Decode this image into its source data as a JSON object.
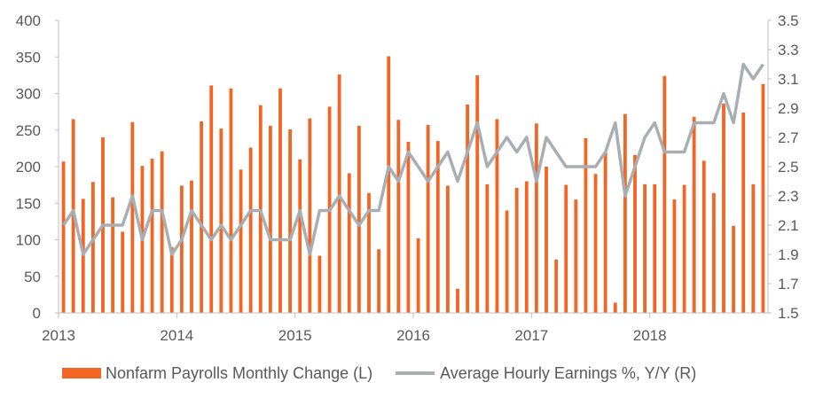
{
  "chart_data": {
    "type": "bar",
    "title": "",
    "x_tick_labels": [
      "2013",
      "2014",
      "2015",
      "2016",
      "2017",
      "2018"
    ],
    "left_axis": {
      "ylim": [
        0,
        400
      ],
      "ticks": [
        "0",
        "50",
        "100",
        "150",
        "200",
        "250",
        "300",
        "350",
        "400"
      ]
    },
    "right_axis": {
      "ylim": [
        1.5,
        3.5
      ],
      "ticks": [
        "1.5",
        "1.7",
        "1.9",
        "2.1",
        "2.3",
        "2.5",
        "2.7",
        "2.9",
        "3.1",
        "3.3",
        "3.5"
      ]
    },
    "grid": false,
    "legend_position": "bottom",
    "months_start": "2013-01",
    "series": [
      {
        "name": "Nonfarm Payrolls Monthly Change (L)",
        "type": "bar",
        "axis": "left",
        "color": "#f26522",
        "values": [
          207,
          265,
          156,
          179,
          240,
          158,
          111,
          261,
          201,
          211,
          221,
          90,
          174,
          181,
          262,
          311,
          252,
          307,
          196,
          226,
          284,
          256,
          307,
          251,
          210,
          266,
          78,
          282,
          326,
          191,
          256,
          164,
          87,
          351,
          264,
          234,
          102,
          257,
          235,
          174,
          33,
          285,
          325,
          176,
          265,
          140,
          171,
          180,
          259,
          200,
          73,
          175,
          155,
          239,
          190,
          220,
          14,
          272,
          216,
          176,
          176,
          324,
          155,
          175,
          268,
          208,
          164,
          286,
          119,
          274,
          176,
          313
        ]
      },
      {
        "name": "Average Hourly Earnings %, Y/Y (R)",
        "type": "line",
        "axis": "right",
        "color": "#a9aeb2",
        "values": [
          2.1,
          2.2,
          1.9,
          2.0,
          2.1,
          2.1,
          2.1,
          2.3,
          2.0,
          2.2,
          2.2,
          1.9,
          2.0,
          2.2,
          2.1,
          2.0,
          2.1,
          2.0,
          2.1,
          2.2,
          2.2,
          2.0,
          2.0,
          2.0,
          2.2,
          1.9,
          2.2,
          2.2,
          2.3,
          2.2,
          2.1,
          2.2,
          2.2,
          2.5,
          2.4,
          2.6,
          2.5,
          2.4,
          2.5,
          2.6,
          2.4,
          2.6,
          2.8,
          2.5,
          2.6,
          2.7,
          2.6,
          2.7,
          2.4,
          2.7,
          2.6,
          2.5,
          2.5,
          2.5,
          2.5,
          2.6,
          2.8,
          2.3,
          2.5,
          2.7,
          2.8,
          2.6,
          2.6,
          2.6,
          2.8,
          2.8,
          2.8,
          3.0,
          2.8,
          3.2,
          3.1,
          3.2
        ]
      }
    ]
  }
}
